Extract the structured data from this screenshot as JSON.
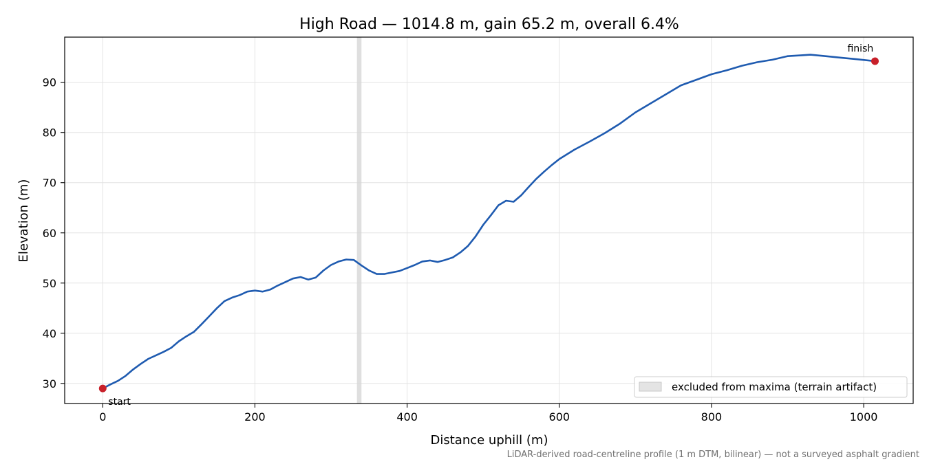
{
  "chart_data": {
    "type": "line",
    "title": "High Road — 1014.8 m, gain 65.2 m, overall 6.4%",
    "xlabel": "Distance uphill (m)",
    "ylabel": "Elevation (m)",
    "xlim": [
      -50,
      1065
    ],
    "ylim": [
      26,
      99
    ],
    "xticks": [
      0,
      200,
      400,
      600,
      800,
      1000
    ],
    "yticks": [
      30,
      40,
      50,
      60,
      70,
      80,
      90
    ],
    "grid": true,
    "legend_position": "lower-right",
    "colors": {
      "line": "#1f5bb0",
      "markers": "#c8202a",
      "excluded_band": "#d4d4d4"
    },
    "series": [
      {
        "x": [
          0,
          10,
          20,
          30,
          40,
          50,
          60,
          70,
          80,
          90,
          100,
          110,
          120,
          130,
          140,
          150,
          160,
          170,
          180,
          190,
          200,
          210,
          220,
          230,
          240,
          250,
          260,
          270,
          280,
          290,
          300,
          310,
          320,
          330,
          340,
          350,
          360,
          370,
          380,
          390,
          400,
          410,
          420,
          430,
          440,
          450,
          460,
          470,
          480,
          490,
          500,
          510,
          520,
          530,
          540,
          550,
          560,
          570,
          580,
          590,
          600,
          620,
          640,
          660,
          680,
          700,
          720,
          740,
          760,
          780,
          800,
          820,
          840,
          860,
          880,
          900,
          920,
          930,
          950,
          970,
          990,
          1014.8
        ],
        "y": [
          29.0,
          29.8,
          30.5,
          31.5,
          32.8,
          33.9,
          34.9,
          35.6,
          36.3,
          37.1,
          38.4,
          39.4,
          40.3,
          41.8,
          43.4,
          45.0,
          46.4,
          47.1,
          47.6,
          48.3,
          48.5,
          48.3,
          48.7,
          49.5,
          50.2,
          50.9,
          51.2,
          50.7,
          51.1,
          52.5,
          53.6,
          54.3,
          54.7,
          54.6,
          53.5,
          52.5,
          51.8,
          51.8,
          52.1,
          52.4,
          53.0,
          53.6,
          54.3,
          54.5,
          54.2,
          54.6,
          55.1,
          56.1,
          57.4,
          59.3,
          61.6,
          63.5,
          65.5,
          66.4,
          66.2,
          67.5,
          69.2,
          70.8,
          72.2,
          73.5,
          74.7,
          76.6,
          78.2,
          79.9,
          81.8,
          84.0,
          85.8,
          87.6,
          89.4,
          90.5,
          91.6,
          92.4,
          93.3,
          94.0,
          94.5,
          95.2,
          95.4,
          95.5,
          95.2,
          94.9,
          94.6,
          94.2
        ]
      }
    ],
    "markers": [
      {
        "label": "start",
        "x": 0,
        "y": 29.0
      },
      {
        "label": "finish",
        "x": 1014.8,
        "y": 94.2
      }
    ],
    "excluded_band": {
      "x": [
        334,
        340
      ],
      "legend": "excluded from maxima (terrain artifact)"
    },
    "footnote": "LiDAR-derived road-centreline profile (1 m DTM, bilinear) — not a surveyed asphalt gradient"
  }
}
